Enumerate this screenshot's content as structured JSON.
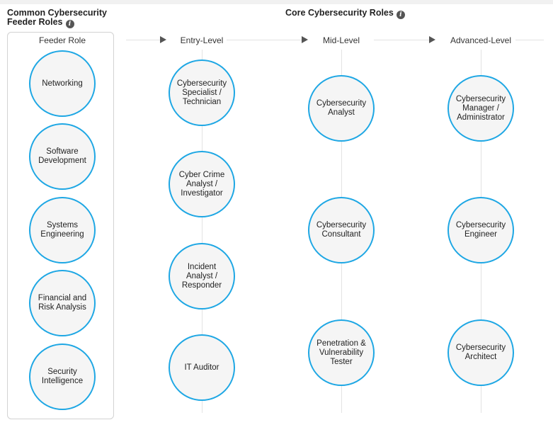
{
  "feeder": {
    "heading": "Common Cybersecurity Feeder Roles",
    "column_label": "Feeder Role",
    "roles": [
      "Networking",
      "Software Development",
      "Systems Engineering",
      "Financial and Risk Analysis",
      "Security Intelligence"
    ]
  },
  "core": {
    "heading": "Core Cybersecurity Roles",
    "levels": [
      {
        "label": "Entry-Level",
        "roles": [
          "Cybersecurity Specialist / Technician",
          "Cyber Crime Analyst / Investigator",
          "Incident Analyst / Responder",
          "IT Auditor"
        ]
      },
      {
        "label": "Mid-Level",
        "roles": [
          "Cybersecurity Analyst",
          "Cybersecurity Consultant",
          "Penetration & Vulnerability Tester"
        ]
      },
      {
        "label": "Advanced-Level",
        "roles": [
          "Cybersecurity Manager / Administrator",
          "Cybersecurity Engineer",
          "Cybersecurity Architect"
        ]
      }
    ]
  },
  "icons": {
    "info": "info-icon",
    "arrow": "arrow-right-icon"
  },
  "colors": {
    "node_border": "#1ea7e4",
    "node_fill": "#f5f5f5",
    "line": "#e3e3e3",
    "arrow": "#555555"
  }
}
